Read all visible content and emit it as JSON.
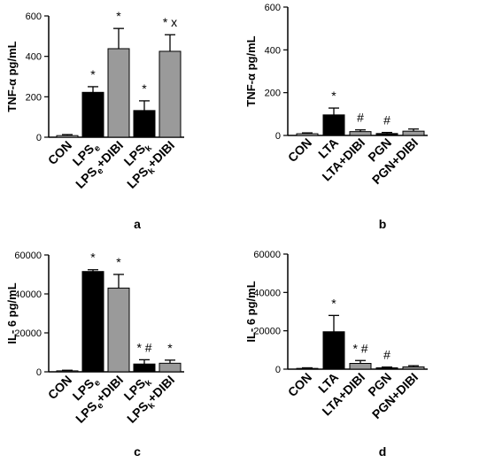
{
  "colors": {
    "black_bar": "#000000",
    "gray_bar": "#9a9a9a",
    "light_bar": "#d4d4d4",
    "axis": "#000000"
  },
  "chart_data": [
    {
      "type": "bar",
      "panel_label": "a",
      "ylabel": "TNF-α pg/mL",
      "ylim": [
        0,
        600
      ],
      "yticks": [
        0,
        200,
        400,
        600
      ],
      "categories": [
        {
          "label": "CON"
        },
        {
          "label": "LPS",
          "sub": "e"
        },
        {
          "label": "LPS",
          "sub": "e",
          "suffix": "+DIBI"
        },
        {
          "label": "LPS",
          "sub": "k"
        },
        {
          "label": "LPS",
          "sub": "k",
          "suffix": "+DIBI"
        }
      ],
      "values": [
        8,
        222,
        438,
        132,
        425
      ],
      "errors": [
        5,
        28,
        100,
        48,
        82
      ],
      "fills": [
        "light",
        "black",
        "gray",
        "black",
        "gray"
      ],
      "annotations": [
        "",
        "*",
        "*",
        "*",
        "* x"
      ]
    },
    {
      "type": "bar",
      "panel_label": "b",
      "ylabel": "TNF-α pg/mL",
      "ylim": [
        0,
        600
      ],
      "yticks": [
        0,
        200,
        400,
        600
      ],
      "categories": [
        {
          "label": "CON"
        },
        {
          "label": "LTA"
        },
        {
          "label": "LTA+DIBI"
        },
        {
          "label": "PGN"
        },
        {
          "label": "PGN+DIBI"
        }
      ],
      "values": [
        8,
        96,
        18,
        9,
        20
      ],
      "errors": [
        4,
        32,
        8,
        5,
        10
      ],
      "fills": [
        "light",
        "black",
        "gray",
        "black",
        "gray"
      ],
      "annotations": [
        "",
        "*",
        "#",
        "#",
        ""
      ]
    },
    {
      "type": "bar",
      "panel_label": "c",
      "ylabel": "IL- 6 pg/mL",
      "ylim": [
        0,
        60000
      ],
      "yticks": [
        0,
        20000,
        40000,
        60000
      ],
      "categories": [
        {
          "label": "CON"
        },
        {
          "label": "LPS",
          "sub": "e"
        },
        {
          "label": "LPS",
          "sub": "e",
          "suffix": "+DIBI"
        },
        {
          "label": "LPS",
          "sub": "k"
        },
        {
          "label": "LPS",
          "sub": "k",
          "suffix": "+DIBI"
        }
      ],
      "values": [
        500,
        51500,
        43000,
        4000,
        4400
      ],
      "errors": [
        300,
        900,
        7000,
        2200,
        1600
      ],
      "fills": [
        "light",
        "black",
        "gray",
        "black",
        "gray"
      ],
      "annotations": [
        "",
        "*",
        "*",
        "* #",
        "*"
      ]
    },
    {
      "type": "bar",
      "panel_label": "d",
      "ylabel": "IL- 6 pg/mL",
      "ylim": [
        0,
        60000
      ],
      "yticks": [
        0,
        20000,
        40000,
        60000
      ],
      "categories": [
        {
          "label": "CON"
        },
        {
          "label": "LTA"
        },
        {
          "label": "LTA+DIBI"
        },
        {
          "label": "PGN"
        },
        {
          "label": "PGN+DIBI"
        }
      ],
      "values": [
        400,
        19500,
        3000,
        700,
        1200
      ],
      "errors": [
        300,
        8500,
        1500,
        400,
        600
      ],
      "fills": [
        "light",
        "black",
        "gray",
        "black",
        "gray"
      ],
      "annotations": [
        "",
        "*",
        "* #",
        "#",
        ""
      ]
    }
  ]
}
